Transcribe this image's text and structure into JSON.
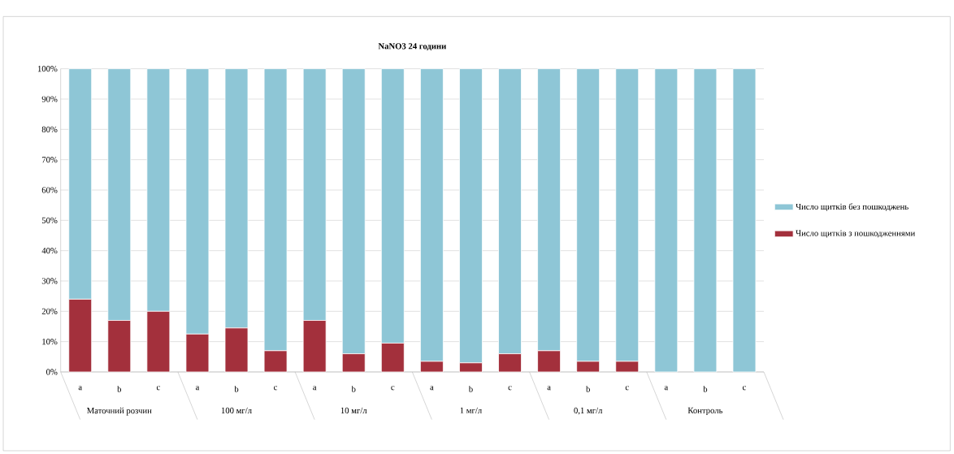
{
  "chart_data": {
    "type": "bar",
    "stacked": true,
    "title": "NaNO3 24 години",
    "categories": [
      "a",
      "b",
      "c",
      "a",
      "b",
      "c",
      "a",
      "b",
      "c",
      "a",
      "b",
      "c",
      "a",
      "b",
      "c",
      "a",
      "b",
      "c"
    ],
    "series": [
      {
        "name": "Число щитків з пошкодженнями",
        "color": "#a3303c",
        "values": [
          24,
          17,
          20,
          12.5,
          14.5,
          7,
          17,
          6,
          9.5,
          3.5,
          3,
          6,
          7,
          3.5,
          3.5,
          0,
          0,
          0
        ]
      },
      {
        "name": "Число щитків без пошкоджень",
        "color": "#8ec6d6",
        "values": [
          76,
          83,
          80,
          87.5,
          85.5,
          93,
          83,
          94,
          90.5,
          96.5,
          97,
          94,
          93,
          96.5,
          96.5,
          100,
          100,
          100
        ]
      }
    ],
    "ylim": [
      0,
      100
    ],
    "yticks": [
      {
        "value": 0,
        "label": "0%"
      },
      {
        "value": 10,
        "label": "10%"
      },
      {
        "value": 20,
        "label": "20%"
      },
      {
        "value": 30,
        "label": "30%"
      },
      {
        "value": 40,
        "label": "40%"
      },
      {
        "value": 50,
        "label": "50%"
      },
      {
        "value": 60,
        "label": "60%"
      },
      {
        "value": 70,
        "label": "70%"
      },
      {
        "value": 80,
        "label": "80%"
      },
      {
        "value": 90,
        "label": "90%"
      },
      {
        "value": 100,
        "label": "100%"
      }
    ],
    "grid": "y",
    "legend": "right",
    "annotations": [
      "Маточний розчин",
      "100 мг/л",
      "10 мг/л",
      "1 мг/л",
      "0,1 мг/л",
      "Контроль"
    ]
  }
}
